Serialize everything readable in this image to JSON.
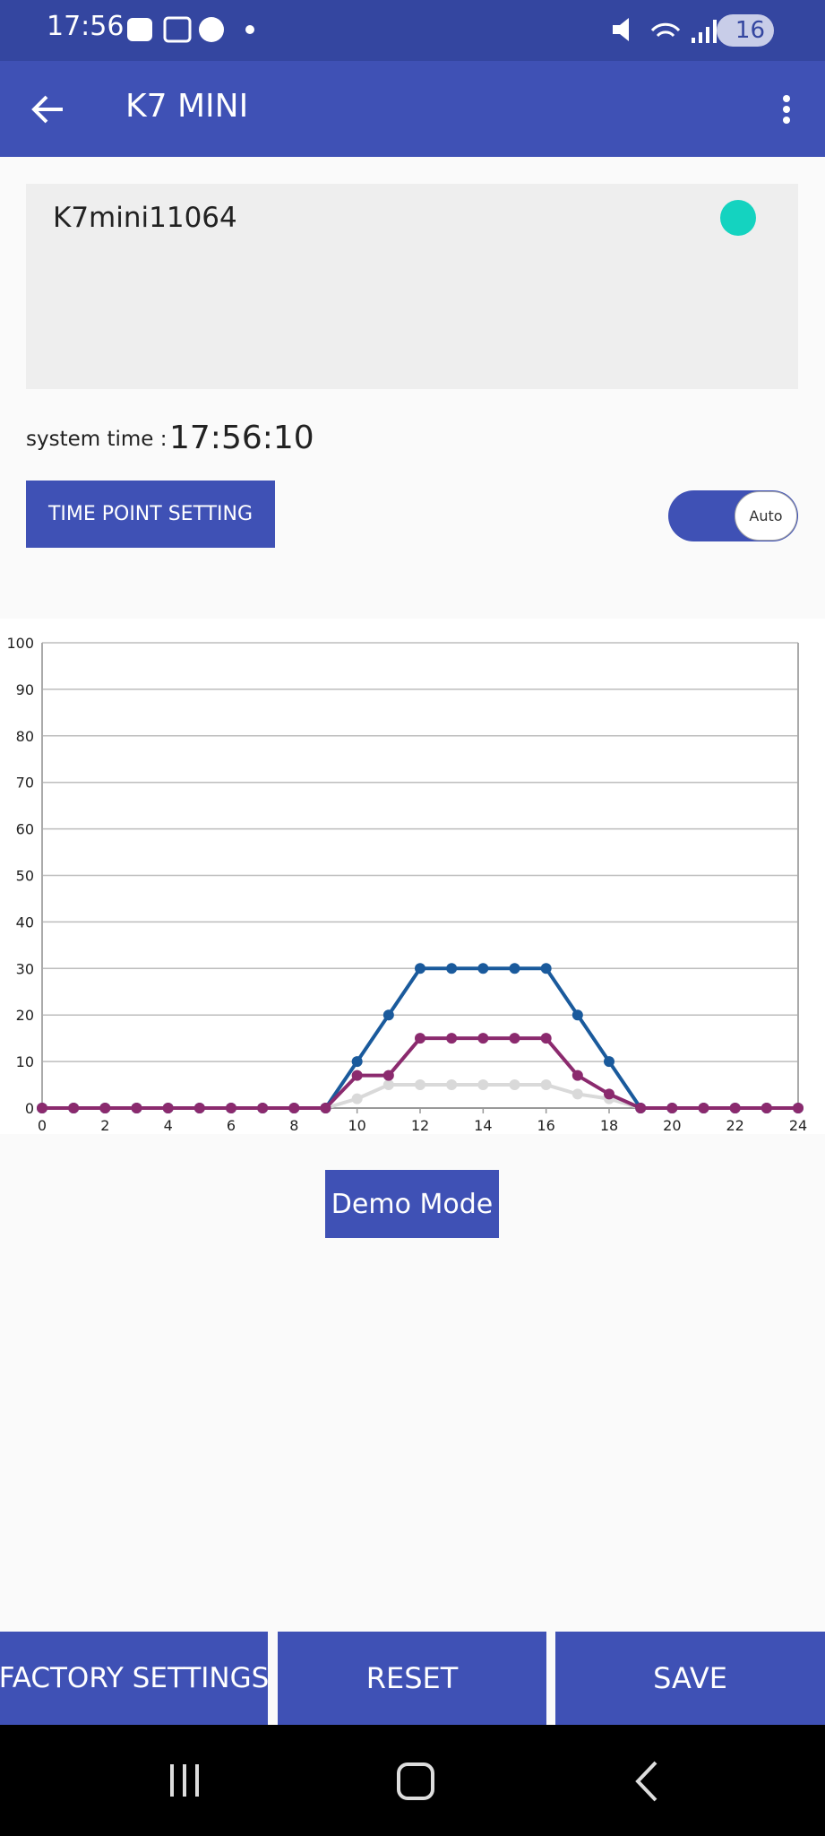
{
  "status_bar": {
    "time": "17:56",
    "battery": "16"
  },
  "app_bar": {
    "title": "K7 MINI"
  },
  "device": {
    "name": "K7mini11064"
  },
  "system_time": {
    "label": "system time :",
    "value": "17:56:10"
  },
  "time_point_button": "TIME POINT SETTING",
  "toggle": {
    "label": "Auto"
  },
  "chart_data": {
    "type": "line",
    "x": [
      0,
      1,
      2,
      3,
      4,
      5,
      6,
      7,
      8,
      9,
      10,
      11,
      12,
      13,
      14,
      15,
      16,
      17,
      18,
      19,
      20,
      21,
      22,
      23,
      24
    ],
    "series": [
      {
        "color": "#d9d9d9",
        "values": [
          0,
          0,
          0,
          0,
          0,
          0,
          0,
          0,
          0,
          0,
          2,
          5,
          5,
          5,
          5,
          5,
          5,
          3,
          2,
          0,
          0,
          0,
          0,
          0,
          0
        ]
      },
      {
        "color": "#1a5a9c",
        "values": [
          0,
          0,
          0,
          0,
          0,
          0,
          0,
          0,
          0,
          0,
          10,
          20,
          30,
          30,
          30,
          30,
          30,
          20,
          10,
          0,
          0,
          0,
          0,
          0,
          0
        ]
      },
      {
        "color": "#8b2a6e",
        "values": [
          0,
          0,
          0,
          0,
          0,
          0,
          0,
          0,
          0,
          0,
          7,
          7,
          15,
          15,
          15,
          15,
          15,
          7,
          3,
          0,
          0,
          0,
          0,
          0,
          0
        ]
      }
    ],
    "xlim": [
      0,
      24
    ],
    "xticks": [
      0,
      2,
      4,
      6,
      8,
      10,
      12,
      14,
      16,
      18,
      20,
      22,
      24
    ],
    "ylim": [
      0,
      100
    ],
    "yticks": [
      0,
      10,
      20,
      30,
      40,
      50,
      60,
      70,
      80,
      90,
      100
    ],
    "grid": true
  },
  "demo_button": "Demo Mode",
  "footer": {
    "buttons": [
      "FACTORY SETTINGS",
      "RESET",
      "SAVE"
    ]
  }
}
